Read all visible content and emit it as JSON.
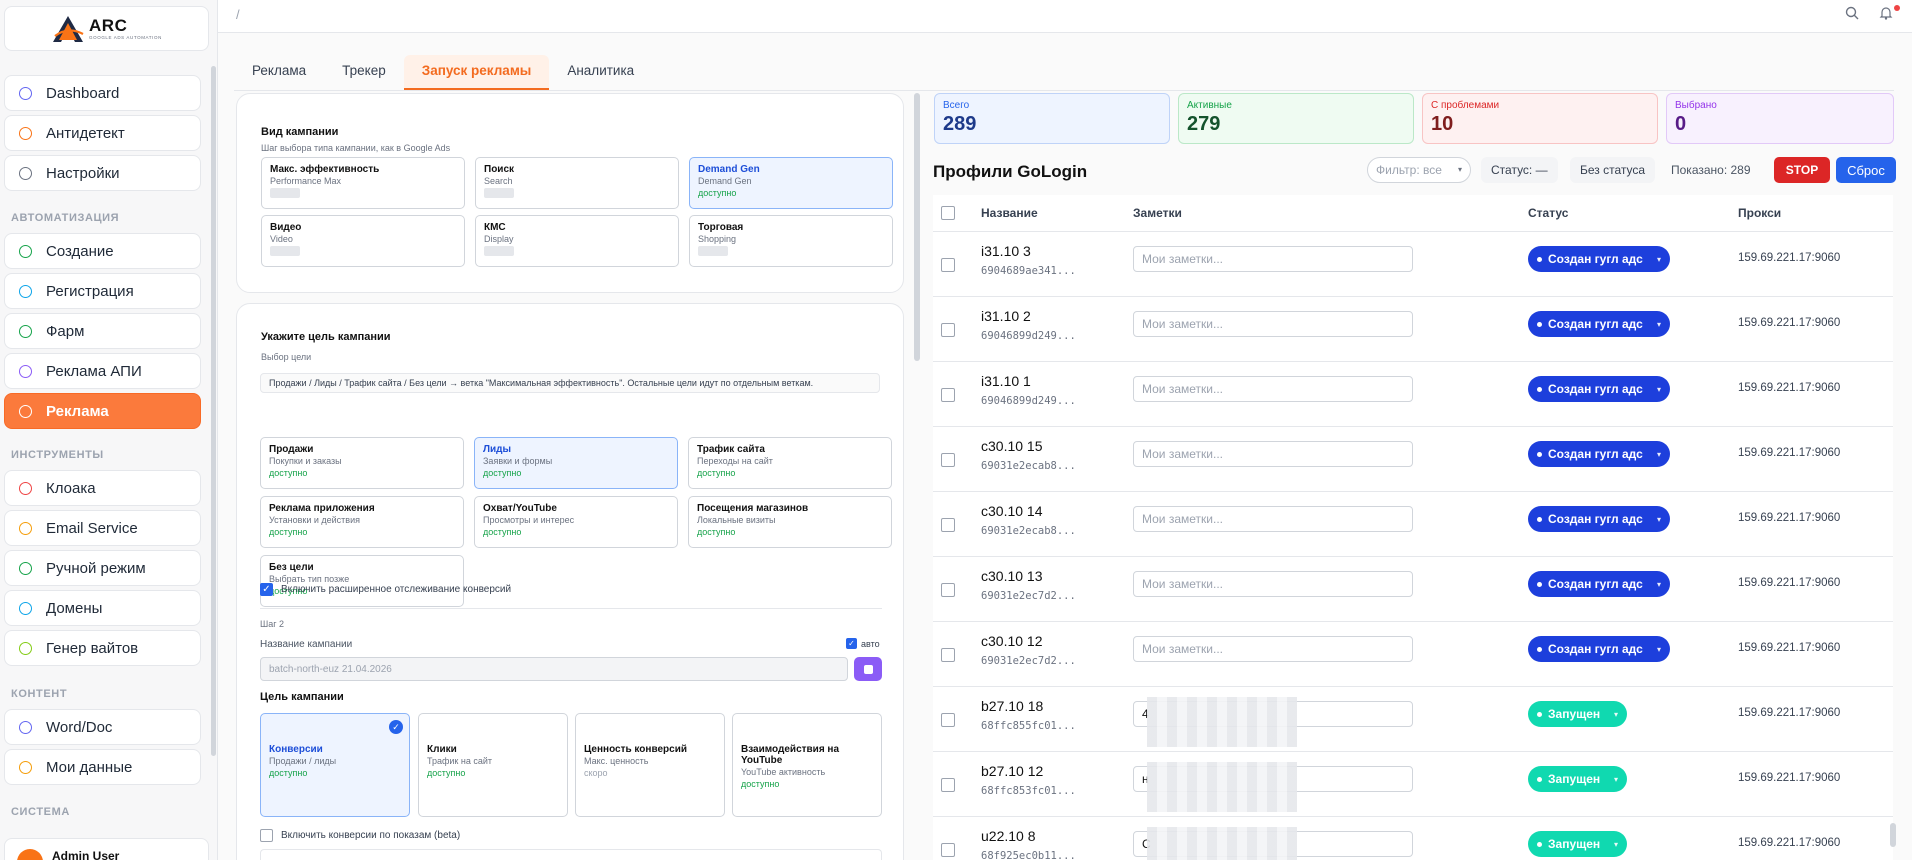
{
  "logo": {
    "name": "ARC",
    "tagline": "GOOGLE ADS AUTOMATION"
  },
  "sidebar": {
    "items": [
      {
        "label": "Dashboard",
        "icon": "grid-icon",
        "color": "#6366f1"
      },
      {
        "label": "Антидетект",
        "icon": "shield-icon",
        "color": "#f97316"
      },
      {
        "label": "Настройки",
        "icon": "gear-icon",
        "color": "#6b7280"
      }
    ],
    "section_automation": "АВТОМАТИЗАЦИЯ",
    "automation_items": [
      {
        "label": "Создание",
        "icon": "plus-circle-icon",
        "color": "#16a34a"
      },
      {
        "label": "Регистрация",
        "icon": "clipboard-icon",
        "color": "#0ea5e9"
      },
      {
        "label": "Фарм",
        "icon": "sprout-icon",
        "color": "#16a34a"
      },
      {
        "label": "Реклама АПИ",
        "icon": "megaphone-icon",
        "color": "#8b5cf6"
      },
      {
        "label": "Реклама",
        "icon": "pointer-icon",
        "color": "#ffffff",
        "active": true
      }
    ],
    "section_tools": "ИНСТРУМЕНТЫ",
    "tool_items": [
      {
        "label": "Клоака",
        "icon": "eye-off-icon",
        "color": "#ef4444"
      },
      {
        "label": "Email Service",
        "icon": "mail-icon",
        "color": "#f59e0b"
      },
      {
        "label": "Ручной режим",
        "icon": "hand-icon",
        "color": "#16a34a"
      },
      {
        "label": "Домены",
        "icon": "globe-icon",
        "color": "#0ea5e9"
      },
      {
        "label": "Генер вайтов",
        "icon": "file-icon",
        "color": "#84cc16"
      }
    ],
    "section_content": "КОНТЕНТ",
    "content_items": [
      {
        "label": "Word/Doc",
        "icon": "doc-icon",
        "color": "#6366f1"
      },
      {
        "label": "Мои данные",
        "icon": "folder-icon",
        "color": "#f59e0b"
      }
    ],
    "section_system": "СИСТЕМА",
    "user": "Admin User"
  },
  "topbar": {
    "breadcrumb": "/"
  },
  "tabs": [
    "Реклама",
    "Трекер",
    "Запуск рекламы",
    "Аналитика"
  ],
  "campaign_type": {
    "title": "Вид кампании",
    "subtitle": "Шаг выбора типа кампании, как в Google Ads",
    "options": [
      {
        "title": "Макс. эффективность",
        "sub": "Performance Max"
      },
      {
        "title": "Поиск",
        "sub": "Search"
      },
      {
        "title": "Demand Gen",
        "sub": "Demand Gen",
        "avail": "доступно"
      },
      {
        "title": "Видео",
        "sub": "Video"
      },
      {
        "title": "КМС",
        "sub": "Display"
      },
      {
        "title": "Торговая",
        "sub": "Shopping"
      }
    ]
  },
  "campaign_goal": {
    "title": "Укажите цель кампании",
    "subtitle": "Выбор цели",
    "hint": "Продажи / Лиды / Трафик сайта / Без цели → ветка \"Максимальная эффективность\". Остальные цели идут по отдельным веткам.",
    "options": [
      {
        "title": "Продажи",
        "sub": "Покупки и заказы",
        "avail": "доступно"
      },
      {
        "title": "Лиды",
        "sub": "Заявки и формы",
        "avail": "доступно"
      },
      {
        "title": "Трафик сайта",
        "sub": "Переходы на сайт",
        "avail": "доступно"
      },
      {
        "title": "Реклама приложения",
        "sub": "Установки и действия",
        "avail": "доступно"
      },
      {
        "title": "Охват/YouTube",
        "sub": "Просмотры и интерес",
        "avail": "доступно"
      },
      {
        "title": "Посещения магазинов",
        "sub": "Локальные визиты",
        "avail": "доступно"
      },
      {
        "title": "Без цели",
        "sub": "Выбрать тип позже",
        "avail": "доступно"
      }
    ],
    "ext_tracking": "Включить расширенное отслеживание конверсий",
    "step2": "Шаг 2",
    "name_label": "Название кампании",
    "auto_label": "авто",
    "name_value": "batch-north-euz 21.04.2026",
    "goal_label": "Цель кампании",
    "goals": [
      {
        "title": "Конверсии",
        "sub": "Продажи / лиды",
        "avail": "доступно"
      },
      {
        "title": "Клики",
        "sub": "Трафик на сайт",
        "avail": "доступно"
      },
      {
        "title": "Ценность конверсий",
        "sub": "Макс. ценность",
        "avail": "скоро"
      },
      {
        "title": "Взаимодействия на YouTube",
        "sub": "YouTube активность",
        "avail": "доступно"
      }
    ],
    "view_conv": "Включить конверсии по показам (beta)"
  },
  "stats": [
    {
      "label": "Всего",
      "value": "289"
    },
    {
      "label": "Активные",
      "value": "279"
    },
    {
      "label": "С проблемами",
      "value": "10"
    },
    {
      "label": "Выбрано",
      "value": "0"
    }
  ],
  "profiles": {
    "title": "Профили GoLogin",
    "filter_placeholder": "Фильтр: все",
    "status_pill": "Статус: —",
    "no_status": "Без статуса",
    "shown": "Показано: 289",
    "stop": "STOP",
    "reset": "Сброс",
    "columns": [
      "Название",
      "Заметки",
      "Статус",
      "Прокси"
    ],
    "note_placeholder": "Мои заметки...",
    "rows": [
      {
        "name": "i31.10 3",
        "id": "6904689ae341...",
        "note": "",
        "status": "Создан гугл адс",
        "kind": "blue",
        "proxy": "159.69.221.17:9060"
      },
      {
        "name": "i31.10 2",
        "id": "69046899d249...",
        "note": "",
        "status": "Создан гугл адс",
        "kind": "blue",
        "proxy": "159.69.221.17:9060"
      },
      {
        "name": "i31.10 1",
        "id": "69046899d249...",
        "note": "",
        "status": "Создан гугл адс",
        "kind": "blue",
        "proxy": "159.69.221.17:9060"
      },
      {
        "name": "c30.10 15",
        "id": "69031e2ecab8...",
        "note": "",
        "status": "Создан гугл адс",
        "kind": "blue",
        "proxy": "159.69.221.17:9060"
      },
      {
        "name": "c30.10 14",
        "id": "69031e2ecab8...",
        "note": "",
        "status": "Создан гугл адс",
        "kind": "blue",
        "proxy": "159.69.221.17:9060"
      },
      {
        "name": "c30.10 13",
        "id": "69031e2ec7d2...",
        "note": "",
        "status": "Создан гугл адс",
        "kind": "blue",
        "proxy": "159.69.221.17:9060"
      },
      {
        "name": "c30.10 12",
        "id": "69031e2ec7d2...",
        "note": "",
        "status": "Создан гугл адс",
        "kind": "blue",
        "proxy": "159.69.221.17:9060"
      },
      {
        "name": "b27.10 18",
        "id": "68ffc855fc01...",
        "note": "4",
        "status": "Запущен",
        "kind": "green",
        "proxy": "159.69.221.17:9060"
      },
      {
        "name": "b27.10 12",
        "id": "68ffc853fc01...",
        "note": "н",
        "status": "Запущен",
        "kind": "green",
        "proxy": "159.69.221.17:9060"
      },
      {
        "name": "u22.10 8",
        "id": "68f925ec0b11...",
        "note": "С",
        "status": "Запущен",
        "kind": "green",
        "proxy": "159.69.221.17:9060"
      }
    ]
  }
}
